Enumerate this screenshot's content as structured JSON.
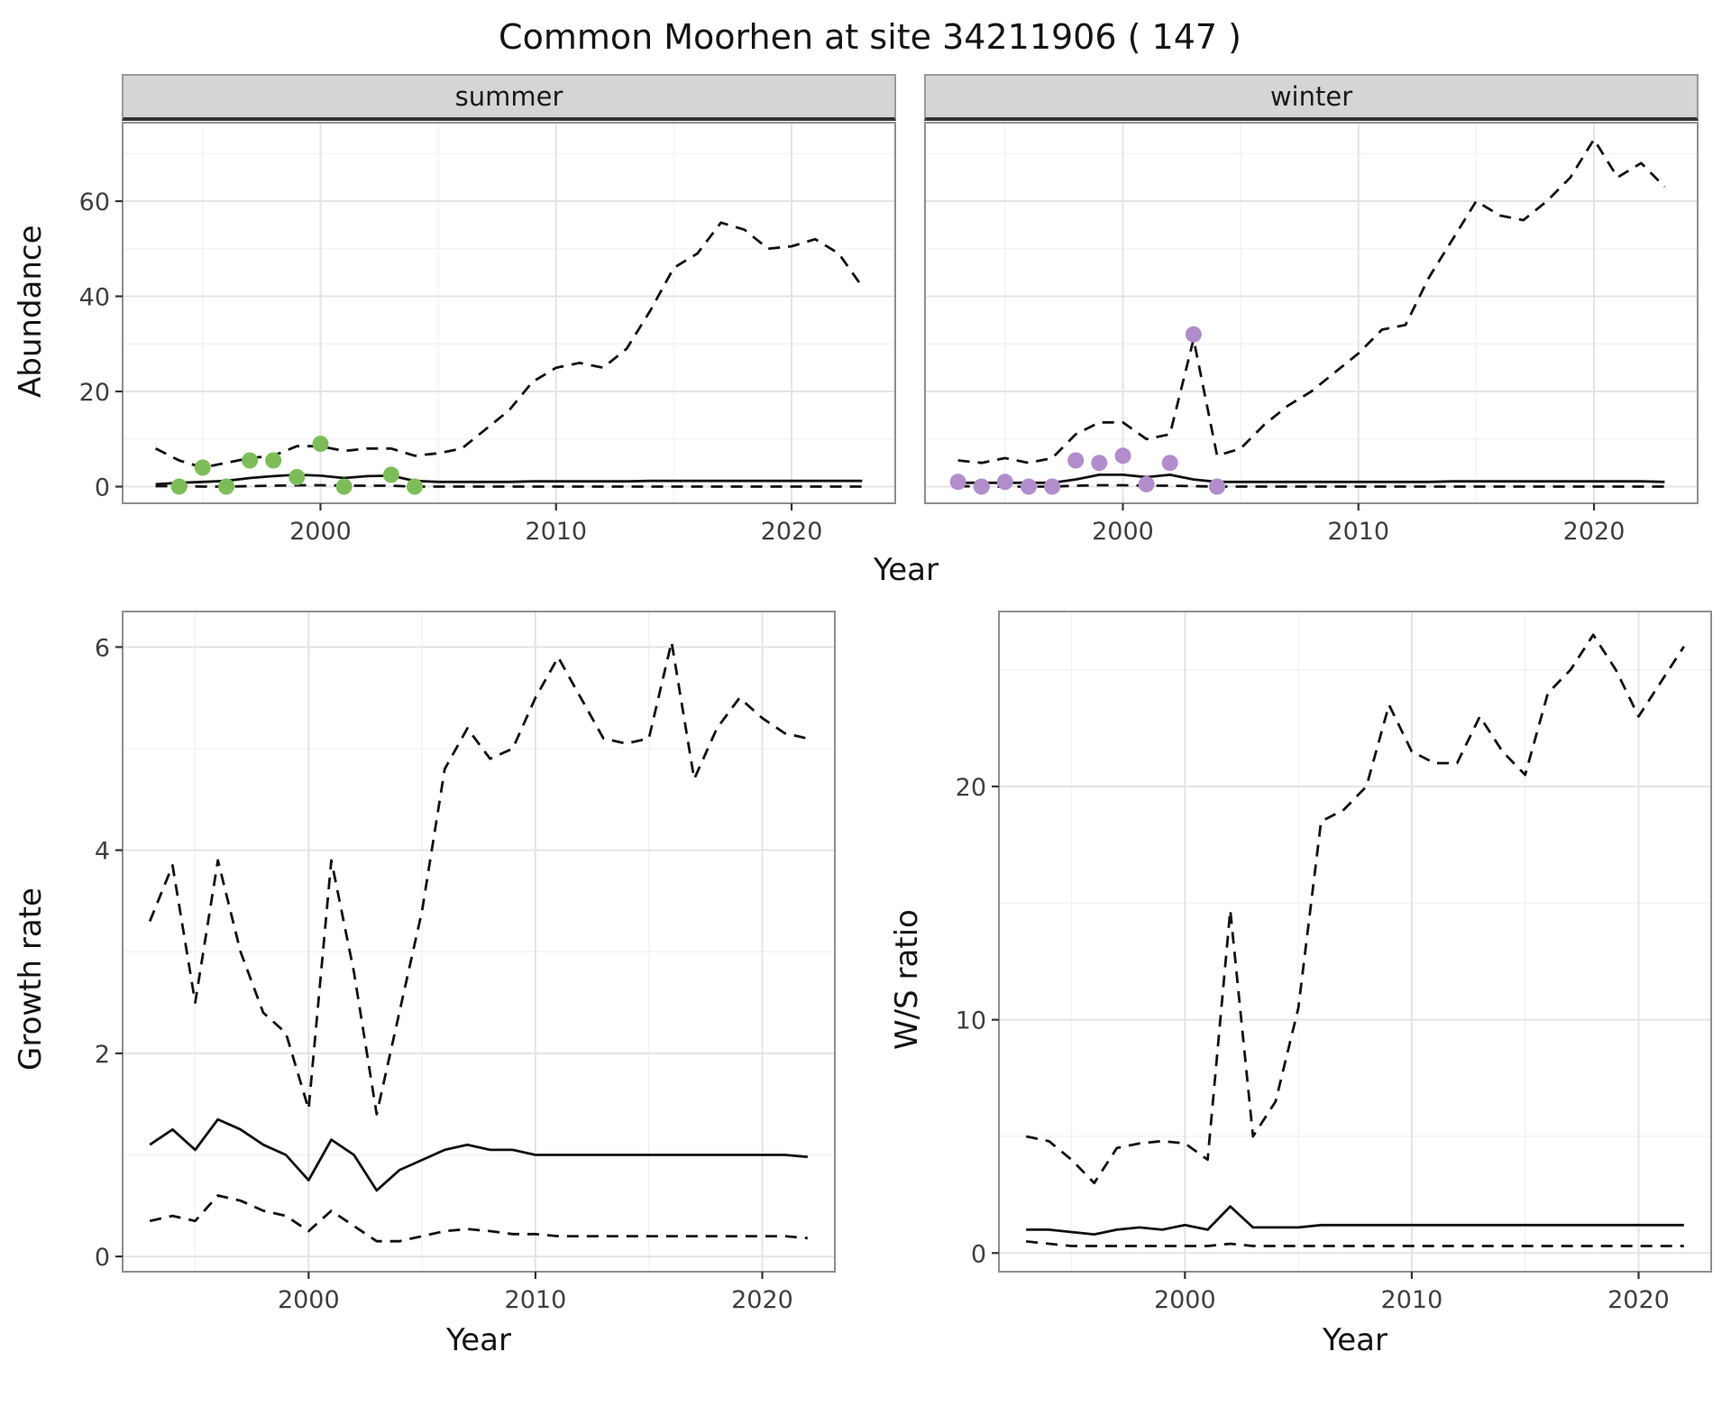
{
  "title": "Common Moorhen at site 34211906 ( 147 )",
  "facets": {
    "summer": "summer",
    "winter": "winter"
  },
  "axis_labels": {
    "abundance": "Abundance",
    "year": "Year",
    "growth": "Growth rate",
    "ws": "W/S ratio"
  },
  "colors": {
    "line": "#111111",
    "observed_summer": "#7dbd59",
    "observed_winter": "#b18dcb",
    "strip_bg": "#d5d5d5",
    "grid_major": "#e4e4e4",
    "grid_minor": "#f2f2f2",
    "panel_border": "#8f8f8f",
    "tick_label": "#3f3f3f"
  },
  "chart_data": [
    {
      "type": "line",
      "name": "abundance-summer",
      "title": "summer",
      "xlabel": "Year",
      "ylabel": "Abundance",
      "xlim": [
        1991.6,
        2024.4
      ],
      "ylim": [
        -3.5,
        76.5
      ],
      "xticks": [
        2000,
        2010,
        2020
      ],
      "yticks": [
        0,
        20,
        40,
        60
      ],
      "show_yticklabels": true,
      "grid": true,
      "legend": "none",
      "x": [
        1993,
        1994,
        1995,
        1996,
        1997,
        1998,
        1999,
        2000,
        2001,
        2002,
        2003,
        2004,
        2005,
        2006,
        2007,
        2008,
        2009,
        2010,
        2011,
        2012,
        2013,
        2014,
        2015,
        2016,
        2017,
        2018,
        2019,
        2020,
        2021,
        2022,
        2023
      ],
      "series": [
        {
          "name": "upper-ci",
          "style": "dashed",
          "values": [
            8,
            5.5,
            4,
            5,
            6,
            6.5,
            8.5,
            8.5,
            7.5,
            8,
            8,
            6.5,
            7,
            8,
            12,
            16,
            22,
            25,
            26,
            25,
            29,
            37,
            46,
            49,
            55.5,
            54,
            50,
            50.5,
            52,
            49,
            42
          ]
        },
        {
          "name": "median",
          "style": "solid",
          "values": [
            0.5,
            0.8,
            1.0,
            1.2,
            1.8,
            2.2,
            2.5,
            2.3,
            1.8,
            2.2,
            2.3,
            1.2,
            1.0,
            1.0,
            1.0,
            1.0,
            1.1,
            1.1,
            1.1,
            1.1,
            1.1,
            1.2,
            1.2,
            1.2,
            1.2,
            1.2,
            1.2,
            1.2,
            1.2,
            1.2,
            1.2
          ]
        },
        {
          "name": "lower-ci",
          "style": "dashed",
          "values": [
            0.1,
            0.1,
            0,
            0,
            0.1,
            0.2,
            0.3,
            0.3,
            0.2,
            0.2,
            0.2,
            0,
            0,
            0,
            0,
            0,
            0,
            0,
            0,
            0,
            0,
            0,
            0,
            0,
            0,
            0,
            0,
            0,
            0,
            0,
            0
          ]
        }
      ],
      "points": {
        "name": "observed-summer",
        "color": "#7dbd59",
        "x": [
          1994,
          1995,
          1996,
          1997,
          1998,
          1999,
          2000,
          2001,
          2003,
          2004
        ],
        "y": [
          0,
          4,
          0,
          5.5,
          5.5,
          2,
          9,
          0,
          2.5,
          0
        ]
      }
    },
    {
      "type": "line",
      "name": "abundance-winter",
      "title": "winter",
      "xlabel": "Year",
      "ylabel": "Abundance",
      "xlim": [
        1991.6,
        2024.4
      ],
      "ylim": [
        -3.5,
        76.5
      ],
      "xticks": [
        2000,
        2010,
        2020
      ],
      "yticks": [
        0,
        20,
        40,
        60
      ],
      "show_yticklabels": false,
      "grid": true,
      "legend": "none",
      "x": [
        1993,
        1994,
        1995,
        1996,
        1997,
        1998,
        1999,
        2000,
        2001,
        2002,
        2003,
        2004,
        2005,
        2006,
        2007,
        2008,
        2009,
        2010,
        2011,
        2012,
        2013,
        2014,
        2015,
        2016,
        2017,
        2018,
        2019,
        2020,
        2021,
        2022,
        2023
      ],
      "series": [
        {
          "name": "upper-ci",
          "style": "dashed",
          "values": [
            5.5,
            5,
            6,
            5,
            6,
            11,
            13.5,
            13.5,
            10,
            11,
            31,
            6.5,
            8,
            13,
            17,
            20,
            24,
            28,
            33,
            34,
            44,
            52,
            60,
            57,
            56,
            60,
            65,
            73,
            65,
            68,
            63
          ]
        },
        {
          "name": "median",
          "style": "solid",
          "values": [
            0.8,
            0.8,
            0.8,
            0.8,
            0.8,
            1.5,
            2.5,
            2.5,
            2.0,
            2.5,
            1.5,
            1.0,
            1.0,
            1.0,
            1.0,
            1.0,
            1.0,
            1.0,
            1.0,
            1.0,
            1.0,
            1.1,
            1.1,
            1.1,
            1.1,
            1.1,
            1.1,
            1.1,
            1.1,
            1.1,
            1.0
          ]
        },
        {
          "name": "lower-ci",
          "style": "dashed",
          "values": [
            0.1,
            0,
            0,
            0,
            0,
            0.2,
            0.3,
            0.3,
            0.2,
            0.2,
            0.1,
            0,
            0,
            0,
            0,
            0,
            0,
            0,
            0,
            0,
            0,
            0,
            0,
            0,
            0,
            0,
            0,
            0,
            0,
            0,
            0
          ]
        }
      ],
      "points": {
        "name": "observed-winter",
        "color": "#b18dcb",
        "x": [
          1993,
          1994,
          1995,
          1996,
          1997,
          1998,
          1999,
          2000,
          2001,
          2002,
          2003,
          2004
        ],
        "y": [
          1,
          0,
          1,
          0,
          0,
          5.5,
          5,
          6.5,
          0.5,
          5,
          32,
          0
        ]
      }
    },
    {
      "type": "line",
      "name": "growth-rate",
      "title": "",
      "xlabel": "Year",
      "ylabel": "Growth rate",
      "xlim": [
        1991.8,
        2023.2
      ],
      "ylim": [
        -0.15,
        6.35
      ],
      "xticks": [
        2000,
        2010,
        2020
      ],
      "yticks": [
        0,
        2,
        4,
        6
      ],
      "show_yticklabels": true,
      "grid": true,
      "legend": "none",
      "x": [
        1993,
        1994,
        1995,
        1996,
        1997,
        1998,
        1999,
        2000,
        2001,
        2002,
        2003,
        2004,
        2005,
        2006,
        2007,
        2008,
        2009,
        2010,
        2011,
        2012,
        2013,
        2014,
        2015,
        2016,
        2017,
        2018,
        2019,
        2020,
        2021,
        2022
      ],
      "series": [
        {
          "name": "upper-ci",
          "style": "dashed",
          "values": [
            3.3,
            3.85,
            2.5,
            3.9,
            3.0,
            2.4,
            2.2,
            1.45,
            3.9,
            2.8,
            1.4,
            2.4,
            3.4,
            4.8,
            5.2,
            4.9,
            5.0,
            5.5,
            5.9,
            5.5,
            5.1,
            5.05,
            5.1,
            6.05,
            4.7,
            5.2,
            5.5,
            5.3,
            5.15,
            5.1
          ]
        },
        {
          "name": "median",
          "style": "solid",
          "values": [
            1.1,
            1.25,
            1.05,
            1.35,
            1.25,
            1.1,
            1.0,
            0.75,
            1.15,
            1.0,
            0.65,
            0.85,
            0.95,
            1.05,
            1.1,
            1.05,
            1.05,
            1.0,
            1.0,
            1.0,
            1.0,
            1.0,
            1.0,
            1.0,
            1.0,
            1.0,
            1.0,
            1.0,
            1.0,
            0.98
          ]
        },
        {
          "name": "lower-ci",
          "style": "dashed",
          "values": [
            0.35,
            0.4,
            0.35,
            0.6,
            0.55,
            0.45,
            0.4,
            0.25,
            0.45,
            0.3,
            0.15,
            0.15,
            0.2,
            0.25,
            0.27,
            0.25,
            0.22,
            0.22,
            0.2,
            0.2,
            0.2,
            0.2,
            0.2,
            0.2,
            0.2,
            0.2,
            0.2,
            0.2,
            0.2,
            0.18
          ]
        }
      ]
    },
    {
      "type": "line",
      "name": "ws-ratio",
      "title": "",
      "xlabel": "Year",
      "ylabel": "W/S ratio",
      "xlim": [
        1991.8,
        2023.2
      ],
      "ylim": [
        -0.8,
        27.5
      ],
      "xticks": [
        2000,
        2010,
        2020
      ],
      "yticks": [
        0,
        10,
        20
      ],
      "show_yticklabels": true,
      "grid": true,
      "legend": "none",
      "x": [
        1993,
        1994,
        1995,
        1996,
        1997,
        1998,
        1999,
        2000,
        2001,
        2002,
        2003,
        2004,
        2005,
        2006,
        2007,
        2008,
        2009,
        2010,
        2011,
        2012,
        2013,
        2014,
        2015,
        2016,
        2017,
        2018,
        2019,
        2020,
        2021,
        2022
      ],
      "series": [
        {
          "name": "upper-ci",
          "style": "dashed",
          "values": [
            5.0,
            4.8,
            4.0,
            3.0,
            4.5,
            4.7,
            4.8,
            4.7,
            4.0,
            14.7,
            5.0,
            6.5,
            10.5,
            18.5,
            19.0,
            20.0,
            23.5,
            21.5,
            21.0,
            21.0,
            23.0,
            21.5,
            20.5,
            24.0,
            25.0,
            26.5,
            25.0,
            23.0,
            24.5,
            26.0
          ]
        },
        {
          "name": "median",
          "style": "solid",
          "values": [
            1.0,
            1.0,
            0.9,
            0.8,
            1.0,
            1.1,
            1.0,
            1.2,
            1.0,
            2.0,
            1.1,
            1.1,
            1.1,
            1.2,
            1.2,
            1.2,
            1.2,
            1.2,
            1.2,
            1.2,
            1.2,
            1.2,
            1.2,
            1.2,
            1.2,
            1.2,
            1.2,
            1.2,
            1.2,
            1.2
          ]
        },
        {
          "name": "lower-ci",
          "style": "dashed",
          "values": [
            0.5,
            0.4,
            0.3,
            0.3,
            0.3,
            0.3,
            0.3,
            0.3,
            0.3,
            0.4,
            0.3,
            0.3,
            0.3,
            0.3,
            0.3,
            0.3,
            0.3,
            0.3,
            0.3,
            0.3,
            0.3,
            0.3,
            0.3,
            0.3,
            0.3,
            0.3,
            0.3,
            0.3,
            0.3,
            0.3
          ]
        }
      ]
    }
  ]
}
